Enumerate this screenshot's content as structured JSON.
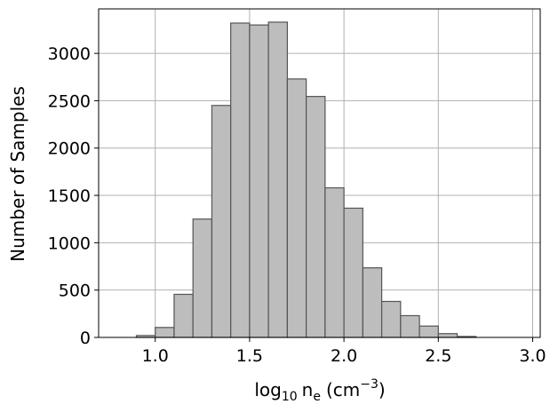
{
  "chart_data": {
    "type": "bar",
    "bin_edges": [
      0.8,
      0.9,
      1.0,
      1.1,
      1.2,
      1.3,
      1.4,
      1.5,
      1.6,
      1.7,
      1.8,
      1.9,
      2.0,
      2.1,
      2.2,
      2.3,
      2.4,
      2.5,
      2.6,
      2.7,
      2.8,
      2.9
    ],
    "values": [
      0,
      20,
      105,
      455,
      1250,
      2450,
      3320,
      3300,
      3330,
      2730,
      2545,
      1580,
      1365,
      735,
      380,
      230,
      120,
      40,
      10,
      0,
      0
    ],
    "xlabel": {
      "prefix": "log",
      "sub": "10",
      "var": "n",
      "var_sub": "e",
      "unit_open": "(cm",
      "unit_sup": "−3",
      "unit_close": ")"
    },
    "ylabel": "Number of Samples",
    "xlim": [
      0.7,
      3.04
    ],
    "ylim": [
      0,
      3470
    ],
    "x_ticks": [
      1.0,
      1.5,
      2.0,
      2.5,
      3.0
    ],
    "x_tick_labels": [
      "1.0",
      "1.5",
      "2.0",
      "2.5",
      "3.0"
    ],
    "y_ticks": [
      0,
      500,
      1000,
      1500,
      2000,
      2500,
      3000
    ],
    "y_tick_labels": [
      "0",
      "500",
      "1000",
      "1500",
      "2000",
      "2500",
      "3000"
    ],
    "grid": true,
    "bar_color": "#bdbdbd",
    "bar_edge_color": "#555555",
    "grid_color": "#b0b0b0"
  }
}
